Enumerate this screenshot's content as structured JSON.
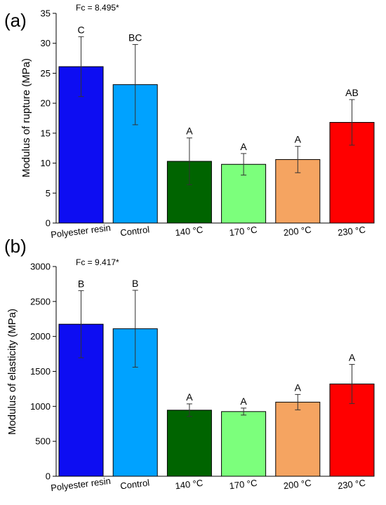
{
  "panels": [
    {
      "panel_label": "(a)",
      "stat_text": "Fc = 8.495*",
      "ylabel": "Modulus of rupture (MPa)"
    },
    {
      "panel_label": "(b)",
      "stat_text": "Fc = 9.417*",
      "ylabel": "Modulus of elasticity (MPa)"
    }
  ],
  "chart_data": [
    {
      "type": "bar",
      "title": "",
      "xlabel": "",
      "ylabel": "Modulus of rupture (MPa)",
      "categories": [
        "Polyester resin",
        "Control",
        "140 °C",
        "170 °C",
        "200 °C",
        "230 °C"
      ],
      "values": [
        26.1,
        23.1,
        10.3,
        9.8,
        10.6,
        16.8
      ],
      "error": [
        5.0,
        6.7,
        3.9,
        1.8,
        2.2,
        3.8
      ],
      "significance_letters": [
        "C",
        "BC",
        "A",
        "A",
        "A",
        "AB"
      ],
      "bar_colors": [
        "#0d0df2",
        "#00a2ff",
        "#006400",
        "#7cff7c",
        "#f5a461",
        "#ff0000"
      ],
      "ylim": [
        0,
        35
      ],
      "yticks": [
        0,
        5,
        10,
        15,
        20,
        25,
        30,
        35
      ],
      "grid": false,
      "annotation": "Fc = 8.495*"
    },
    {
      "type": "bar",
      "title": "",
      "xlabel": "",
      "ylabel": "Modulus of elasticity (MPa)",
      "categories": [
        "Polyester resin",
        "Control",
        "140 °C",
        "170 °C",
        "200 °C",
        "230 °C"
      ],
      "values": [
        2175,
        2110,
        945,
        925,
        1060,
        1320
      ],
      "error": [
        480,
        550,
        90,
        50,
        110,
        280
      ],
      "significance_letters": [
        "B",
        "B",
        "A",
        "A",
        "A",
        "A"
      ],
      "bar_colors": [
        "#0d0df2",
        "#00a2ff",
        "#006400",
        "#7cff7c",
        "#f5a461",
        "#ff0000"
      ],
      "ylim": [
        0,
        3000
      ],
      "yticks": [
        0,
        500,
        1000,
        1500,
        2000,
        2500,
        3000
      ],
      "grid": false,
      "annotation": "Fc = 9.417*"
    }
  ]
}
